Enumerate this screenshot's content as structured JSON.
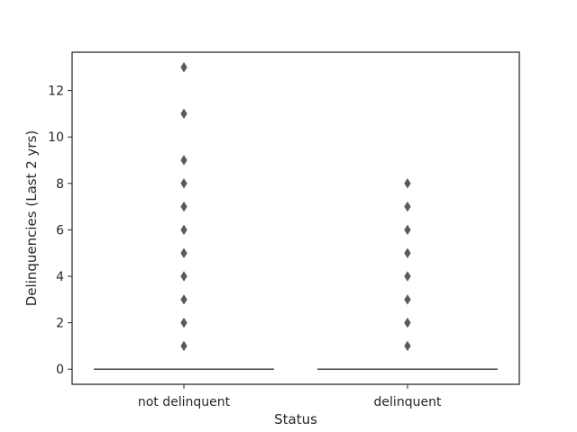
{
  "chart_data": {
    "type": "box",
    "xlabel": "Status",
    "ylabel": "Delinquencies (Last 2 yrs)",
    "categories": [
      "not delinquent",
      "delinquent"
    ],
    "ylim": [
      -0.65,
      13.65
    ],
    "yticks": [
      0,
      2,
      4,
      6,
      8,
      10,
      12
    ],
    "grid": false,
    "boxes": [
      {
        "category": "not delinquent",
        "q1": 0,
        "median": 0,
        "q3": 0,
        "whisker_low": 0,
        "whisker_high": 0,
        "outliers": [
          1,
          2,
          3,
          4,
          5,
          6,
          7,
          8,
          9,
          11,
          13
        ]
      },
      {
        "category": "delinquent",
        "q1": 0,
        "median": 0,
        "q3": 0,
        "whisker_low": 0,
        "whisker_high": 0,
        "outliers": [
          1,
          2,
          3,
          4,
          5,
          6,
          7,
          8
        ]
      }
    ],
    "colors": {
      "box_line": "#4a4a4a",
      "outlier": "#5a5a5a",
      "axes": "#262626"
    }
  }
}
